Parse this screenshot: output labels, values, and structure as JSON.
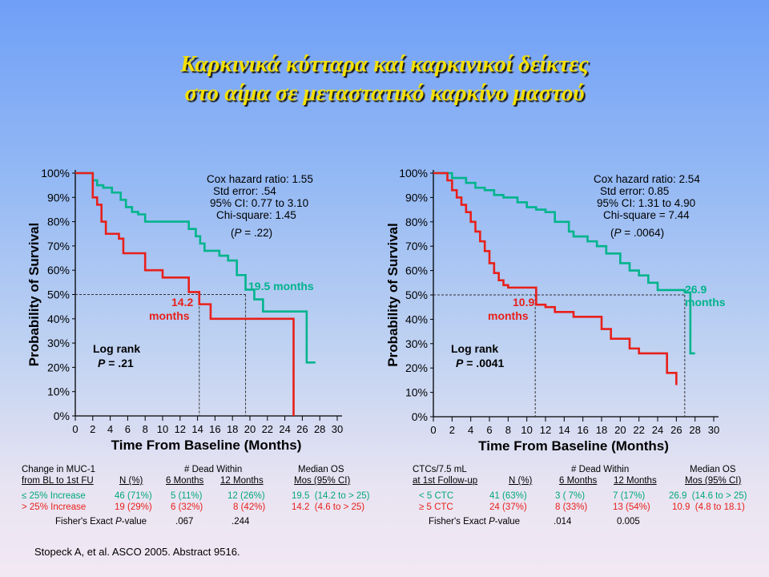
{
  "title": {
    "line1": "Καρκινικά κύτταρα καί καρκινικοί δείκτες",
    "line2": "στο αίμα σε μεταστατικό καρκίνο μαστού"
  },
  "colors": {
    "title": "#f4e000",
    "green": "#00b48c",
    "red": "#e8201a",
    "dashed": "#333333"
  },
  "chart_data": [
    {
      "type": "line",
      "xlabel": "Time From Baseline (Months)",
      "ylabel": "Probability of Survival",
      "xlim": [
        0,
        30
      ],
      "ylim": [
        0,
        100
      ],
      "x_ticks": [
        "0",
        "2",
        "4",
        "6",
        "8",
        "10",
        "12",
        "14",
        "16",
        "18",
        "20",
        "22",
        "24",
        "26",
        "28",
        "30"
      ],
      "y_ticks": [
        "0%",
        "10%",
        "20%",
        "30%",
        "40%",
        "50%",
        "60%",
        "70%",
        "80%",
        "90%",
        "100%"
      ],
      "stats": [
        "Cox hazard ratio: 1.55",
        "Std error: .54",
        "95% CI: 0.77 to 3.10",
        "Chi-square: 1.45"
      ],
      "p_italic": "P",
      "p_rest": " = .22)",
      "p_open": "(",
      "logrank_label": "Log rank",
      "logrank_p": "P",
      "logrank_value": "= .21",
      "green_annotation": [
        "19.5 months"
      ],
      "red_annotation": [
        "14.2",
        "months"
      ],
      "series": [
        {
          "color": "green",
          "median": 19.5,
          "x": [
            0,
            2,
            2.5,
            3.2,
            4.2,
            5.2,
            5.8,
            6.5,
            7.2,
            8.0,
            9.5,
            10.0,
            13.0,
            13.8,
            14.3,
            14.8,
            15.5,
            16.5,
            17.5,
            18.5,
            19.5,
            20.5,
            21.5,
            25.0,
            26.5,
            27.5
          ],
          "y": [
            100,
            97,
            95,
            94,
            92,
            89,
            86,
            84,
            83,
            80,
            80,
            80,
            77,
            74,
            71,
            68,
            68,
            66,
            64,
            58,
            52,
            48,
            43,
            43,
            22,
            22
          ]
        },
        {
          "color": "red",
          "median": 14.2,
          "x": [
            0,
            1,
            2,
            2.5,
            3,
            3.5,
            5,
            5.5,
            6.5,
            8,
            10,
            12.5,
            13,
            14.2,
            15.5,
            18.5,
            24.5,
            25,
            25
          ],
          "y": [
            100,
            100,
            90,
            87,
            80,
            75,
            73,
            67,
            67,
            60,
            57,
            57,
            51,
            46,
            40,
            40,
            40,
            30,
            0
          ]
        }
      ]
    },
    {
      "type": "line",
      "xlabel": "Time From Baseline (Months)",
      "ylabel": "Probability of Survival",
      "xlim": [
        0,
        30
      ],
      "ylim": [
        0,
        100
      ],
      "x_ticks": [
        "0",
        "2",
        "4",
        "6",
        "8",
        "10",
        "12",
        "14",
        "16",
        "18",
        "20",
        "22",
        "24",
        "26",
        "28",
        "30"
      ],
      "y_ticks": [
        "0%",
        "10%",
        "20%",
        "30%",
        "40%",
        "50%",
        "60%",
        "70%",
        "80%",
        "90%",
        "100%"
      ],
      "stats": [
        "Cox hazard ratio: 2.54",
        "Std error: 0.85",
        "95% CI: 1.31 to 4.90",
        "Chi-square = 7.44"
      ],
      "p_italic": "P",
      "p_rest": " = .0064)",
      "p_open": "(",
      "logrank_label": "Log rank",
      "logrank_p": "P",
      "logrank_value": "= .0041",
      "green_annotation": [
        "26.9",
        "months"
      ],
      "red_annotation": [
        "10.9",
        "months"
      ],
      "series": [
        {
          "color": "green",
          "median": 26.9,
          "x": [
            0,
            1.5,
            2,
            3.5,
            4.5,
            5.5,
            6.5,
            7.5,
            9,
            10,
            11,
            12,
            13,
            14.5,
            15,
            16.5,
            17.5,
            18.5,
            20,
            21,
            22,
            23,
            24,
            26.9,
            27.5,
            28
          ],
          "y": [
            100,
            100,
            98,
            96,
            94,
            93,
            91,
            90,
            88,
            86,
            85,
            84,
            80,
            76,
            74,
            72,
            70,
            67,
            63,
            60,
            58,
            55,
            52,
            51,
            26,
            26
          ]
        },
        {
          "color": "red",
          "median": 10.9,
          "x": [
            0,
            1.5,
            2,
            2.5,
            3,
            3.5,
            4,
            4.5,
            5,
            5.5,
            6,
            6.5,
            7,
            7.5,
            8,
            9,
            10.8,
            11,
            12,
            13,
            15,
            17,
            18,
            19,
            21,
            22,
            25,
            26
          ],
          "y": [
            100,
            97,
            93,
            90,
            87,
            84,
            80,
            76,
            72,
            68,
            63,
            59,
            56,
            54,
            53,
            53,
            53,
            46,
            45,
            43,
            41,
            41,
            36,
            32,
            28,
            26,
            18,
            13
          ]
        }
      ]
    }
  ],
  "table_left": {
    "h1": "Change in MUC-1",
    "h2": "from BL to 1st FU",
    "h3": "N (%)",
    "h4": "# Dead Within",
    "h5": "6 Months",
    "h6": "12 Months",
    "h7": "Median OS",
    "h8": "Mos (95% CI)",
    "rows": [
      [
        "≤ 25% Increase",
        "46 (71%)",
        "5 (11%)",
        "12 (26%)",
        "19.5  (14.2 to > 25)"
      ],
      [
        "> 25% Increase",
        "19 (29%)",
        "6 (32%)",
        "8 (42%)",
        "14.2  (4.6 to > 25)"
      ]
    ],
    "fisher_label_pre": "Fisher's Exact ",
    "fisher_p": "P",
    "fisher_label_post": "-value",
    "fisher_values": [
      ".067",
      ".244"
    ]
  },
  "table_right": {
    "h1": "CTCs/7.5 mL",
    "h2": "at 1st Follow-up",
    "h3": "N (%)",
    "h4": "# Dead Within",
    "h5": "6 Months",
    "h6": "12 Months",
    "h7": "Median OS",
    "h8": "Mos (95% CI)",
    "rows": [
      [
        "< 5 CTC",
        "41 (63%)",
        "3 ( 7%)",
        "7 (17%)",
        "26.9  (14.6 to > 25)"
      ],
      [
        "≥ 5 CTC",
        "24 (37%)",
        "8 (33%)",
        "13 (54%)",
        "10.9  (4.8 to 18.1)"
      ]
    ],
    "fisher_label_pre": "Fisher's Exact ",
    "fisher_p": "P",
    "fisher_label_post": "-value",
    "fisher_values": [
      ".014",
      "0.005"
    ]
  },
  "citation": "Stopeck A, et al. ASCO 2005. Abstract 9516."
}
